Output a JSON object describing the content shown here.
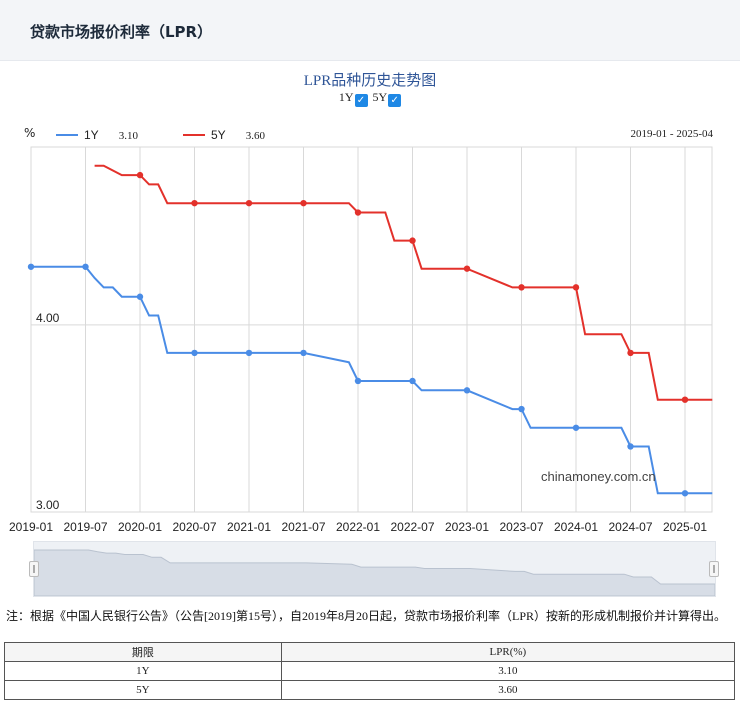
{
  "header": {
    "title": "贷款市场报价利率（LPR）"
  },
  "chart_header": {
    "title": "LPR品种历史走势图",
    "toggles": [
      {
        "label": "1Y",
        "checked": true
      },
      {
        "label": "5Y",
        "checked": true
      }
    ],
    "unit": "%",
    "date_range": "2019-01 - 2025-04",
    "watermark": "chinamoney.com.cn"
  },
  "colors": {
    "1Y": "#4a8ce6",
    "5Y": "#e3312b"
  },
  "chart_data": {
    "type": "line",
    "ylim": [
      3.0,
      4.95
    ],
    "yticks": [
      "4.00",
      "3.00"
    ],
    "ytick_values": [
      4.0,
      3.0
    ],
    "xlim": [
      "2019-01",
      "2025-04"
    ],
    "xticks": [
      "2019-01",
      "2019-07",
      "2020-01",
      "2020-07",
      "2021-01",
      "2021-07",
      "2022-01",
      "2022-07",
      "2023-01",
      "2023-07",
      "2024-01",
      "2024-07",
      "2025-01"
    ],
    "series": [
      {
        "name": "1Y",
        "latest": "3.10",
        "points": [
          [
            "2019-01",
            4.31
          ],
          [
            "2019-07",
            4.31
          ],
          [
            "2019-08",
            4.25
          ],
          [
            "2019-09",
            4.2
          ],
          [
            "2019-10",
            4.2
          ],
          [
            "2019-11",
            4.15
          ],
          [
            "2019-12",
            4.15
          ],
          [
            "2020-01",
            4.15
          ],
          [
            "2020-02",
            4.05
          ],
          [
            "2020-03",
            4.05
          ],
          [
            "2020-04",
            3.85
          ],
          [
            "2020-07",
            3.85
          ],
          [
            "2021-01",
            3.85
          ],
          [
            "2021-07",
            3.85
          ],
          [
            "2021-12",
            3.8
          ],
          [
            "2022-01",
            3.7
          ],
          [
            "2022-07",
            3.7
          ],
          [
            "2022-08",
            3.65
          ],
          [
            "2023-01",
            3.65
          ],
          [
            "2023-06",
            3.55
          ],
          [
            "2023-07",
            3.55
          ],
          [
            "2023-08",
            3.45
          ],
          [
            "2024-01",
            3.45
          ],
          [
            "2024-06",
            3.45
          ],
          [
            "2024-07",
            3.35
          ],
          [
            "2024-09",
            3.35
          ],
          [
            "2024-10",
            3.1
          ],
          [
            "2025-01",
            3.1
          ],
          [
            "2025-04",
            3.1
          ]
        ],
        "markers": [
          "2019-01",
          "2019-07",
          "2020-01",
          "2020-07",
          "2021-01",
          "2021-07",
          "2022-01",
          "2022-07",
          "2023-01",
          "2023-07",
          "2024-01",
          "2024-07",
          "2025-01"
        ]
      },
      {
        "name": "5Y",
        "latest": "3.60",
        "points": [
          [
            "2019-08",
            4.85
          ],
          [
            "2019-09",
            4.85
          ],
          [
            "2019-11",
            4.8
          ],
          [
            "2020-01",
            4.8
          ],
          [
            "2020-02",
            4.75
          ],
          [
            "2020-03",
            4.75
          ],
          [
            "2020-04",
            4.65
          ],
          [
            "2020-07",
            4.65
          ],
          [
            "2021-01",
            4.65
          ],
          [
            "2021-07",
            4.65
          ],
          [
            "2021-12",
            4.65
          ],
          [
            "2022-01",
            4.6
          ],
          [
            "2022-04",
            4.6
          ],
          [
            "2022-05",
            4.45
          ],
          [
            "2022-07",
            4.45
          ],
          [
            "2022-08",
            4.3
          ],
          [
            "2023-01",
            4.3
          ],
          [
            "2023-06",
            4.2
          ],
          [
            "2023-07",
            4.2
          ],
          [
            "2024-01",
            4.2
          ],
          [
            "2024-02",
            3.95
          ],
          [
            "2024-06",
            3.95
          ],
          [
            "2024-07",
            3.85
          ],
          [
            "2024-09",
            3.85
          ],
          [
            "2024-10",
            3.6
          ],
          [
            "2025-01",
            3.6
          ],
          [
            "2025-04",
            3.6
          ]
        ],
        "markers": [
          "2020-01",
          "2020-07",
          "2021-01",
          "2021-07",
          "2022-01",
          "2022-07",
          "2023-01",
          "2023-07",
          "2024-01",
          "2024-07",
          "2025-01"
        ]
      }
    ]
  },
  "note": "注：根据《中国人民银行公告》（公告[2019]第15号），自2019年8月20日起，贷款市场报价利率（LPR）按新的形成机制报价并计算得出。",
  "table": {
    "headers": [
      "期限",
      "LPR(%)"
    ],
    "rows": [
      {
        "term": "1Y",
        "rate": "3.10"
      },
      {
        "term": "5Y",
        "rate": "3.60"
      }
    ]
  }
}
